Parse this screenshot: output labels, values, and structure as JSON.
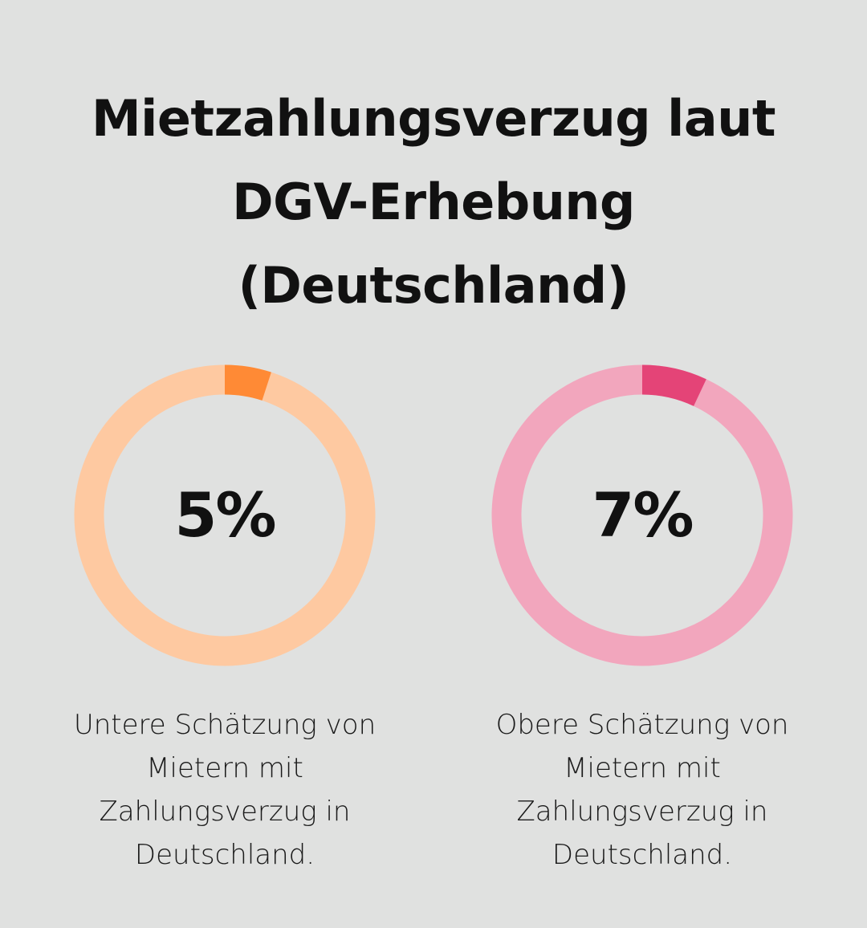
{
  "title": [
    "Mietzahlungsverzug laut",
    "DGV-Erhebung",
    "(Deutschland)"
  ],
  "chart_data": [
    {
      "type": "pie",
      "values": [
        5,
        95
      ],
      "highlight_value": 5,
      "label": "5%",
      "caption": "Untere Schätzung von Mietern mit Zahlungsverzug in Deutschland.",
      "colors": {
        "highlight": "#ff8a35",
        "track": "#fec9a1"
      }
    },
    {
      "type": "pie",
      "values": [
        7,
        93
      ],
      "highlight_value": 7,
      "label": "7%",
      "caption": "Obere Schätzung von Mietern mit Zahlungsverzug in Deutschland.",
      "colors": {
        "highlight": "#e44477",
        "track": "#f2a6bd"
      }
    }
  ],
  "background": "#e0e1e0"
}
